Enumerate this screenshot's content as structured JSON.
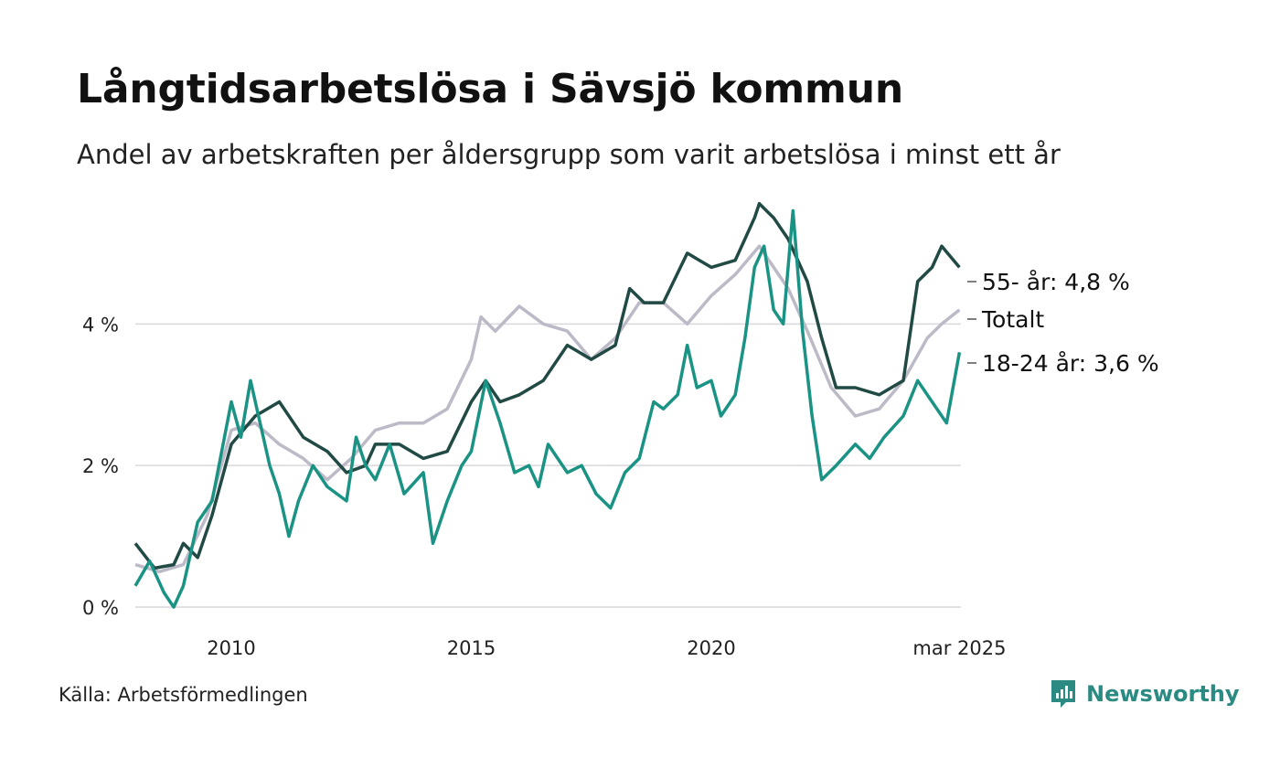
{
  "header": {
    "title": "Långtidsarbetslösa i Sävsjö kommun",
    "subtitle": "Andel av arbetskraften per åldersgrupp som varit arbetslösa i minst ett år"
  },
  "footer": {
    "source": "Källa: Arbetsförmedlingen",
    "brand": "Newsworthy"
  },
  "chart_data": {
    "type": "line",
    "x_range": [
      2008.0,
      2025.2
    ],
    "ylim": [
      0,
      5.8
    ],
    "y_ticks": [
      {
        "value": 0,
        "label": "0 %"
      },
      {
        "value": 2,
        "label": "2 %"
      },
      {
        "value": 4,
        "label": "4 %"
      }
    ],
    "x_ticks": [
      {
        "value": 2010,
        "label": "2010"
      },
      {
        "value": 2015,
        "label": "2015"
      },
      {
        "value": 2020,
        "label": "2020"
      },
      {
        "value": 2025.17,
        "label": "mar 2025"
      }
    ],
    "grid": true,
    "legend": "end-labels",
    "series": [
      {
        "name": "Totalt",
        "label": "Totalt",
        "color": "#bdbac8",
        "points": [
          [
            2008.0,
            0.6
          ],
          [
            2008.5,
            0.5
          ],
          [
            2009.0,
            0.6
          ],
          [
            2009.5,
            1.3
          ],
          [
            2010.0,
            2.5
          ],
          [
            2010.5,
            2.6
          ],
          [
            2011.0,
            2.3
          ],
          [
            2011.5,
            2.1
          ],
          [
            2012.0,
            1.8
          ],
          [
            2012.5,
            2.1
          ],
          [
            2013.0,
            2.5
          ],
          [
            2013.5,
            2.6
          ],
          [
            2014.0,
            2.6
          ],
          [
            2014.5,
            2.8
          ],
          [
            2015.0,
            3.5
          ],
          [
            2015.2,
            4.1
          ],
          [
            2015.5,
            3.9
          ],
          [
            2016.0,
            4.25
          ],
          [
            2016.5,
            4.0
          ],
          [
            2017.0,
            3.9
          ],
          [
            2017.5,
            3.5
          ],
          [
            2018.0,
            3.8
          ],
          [
            2018.5,
            4.3
          ],
          [
            2019.0,
            4.3
          ],
          [
            2019.5,
            4.0
          ],
          [
            2020.0,
            4.4
          ],
          [
            2020.5,
            4.7
          ],
          [
            2021.0,
            5.1
          ],
          [
            2021.3,
            4.8
          ],
          [
            2021.6,
            4.5
          ],
          [
            2022.0,
            3.9
          ],
          [
            2022.5,
            3.1
          ],
          [
            2023.0,
            2.7
          ],
          [
            2023.5,
            2.8
          ],
          [
            2024.0,
            3.2
          ],
          [
            2024.5,
            3.8
          ],
          [
            2024.8,
            4.0
          ],
          [
            2025.17,
            4.2
          ]
        ]
      },
      {
        "name": "55- år",
        "label": "55- år: 4,8 %",
        "color": "#214a45",
        "points": [
          [
            2008.0,
            0.9
          ],
          [
            2008.4,
            0.55
          ],
          [
            2008.8,
            0.6
          ],
          [
            2009.0,
            0.9
          ],
          [
            2009.3,
            0.7
          ],
          [
            2009.6,
            1.3
          ],
          [
            2010.0,
            2.3
          ],
          [
            2010.5,
            2.7
          ],
          [
            2011.0,
            2.9
          ],
          [
            2011.5,
            2.4
          ],
          [
            2012.0,
            2.2
          ],
          [
            2012.4,
            1.9
          ],
          [
            2012.8,
            2.0
          ],
          [
            2013.0,
            2.3
          ],
          [
            2013.5,
            2.3
          ],
          [
            2014.0,
            2.1
          ],
          [
            2014.5,
            2.2
          ],
          [
            2015.0,
            2.9
          ],
          [
            2015.3,
            3.2
          ],
          [
            2015.6,
            2.9
          ],
          [
            2016.0,
            3.0
          ],
          [
            2016.5,
            3.2
          ],
          [
            2017.0,
            3.7
          ],
          [
            2017.5,
            3.5
          ],
          [
            2018.0,
            3.7
          ],
          [
            2018.3,
            4.5
          ],
          [
            2018.6,
            4.3
          ],
          [
            2019.0,
            4.3
          ],
          [
            2019.5,
            5.0
          ],
          [
            2020.0,
            4.8
          ],
          [
            2020.5,
            4.9
          ],
          [
            2020.9,
            5.5
          ],
          [
            2021.0,
            5.7
          ],
          [
            2021.3,
            5.5
          ],
          [
            2021.6,
            5.2
          ],
          [
            2022.0,
            4.6
          ],
          [
            2022.3,
            3.8
          ],
          [
            2022.6,
            3.1
          ],
          [
            2023.0,
            3.1
          ],
          [
            2023.5,
            3.0
          ],
          [
            2024.0,
            3.2
          ],
          [
            2024.3,
            4.6
          ],
          [
            2024.6,
            4.8
          ],
          [
            2024.8,
            5.1
          ],
          [
            2025.17,
            4.8
          ]
        ]
      },
      {
        "name": "18-24 år",
        "label": "18-24 år: 3,6 %",
        "color": "#1a9384",
        "points": [
          [
            2008.0,
            0.3
          ],
          [
            2008.3,
            0.65
          ],
          [
            2008.6,
            0.2
          ],
          [
            2008.8,
            0.0
          ],
          [
            2009.0,
            0.3
          ],
          [
            2009.3,
            1.2
          ],
          [
            2009.6,
            1.5
          ],
          [
            2009.8,
            2.2
          ],
          [
            2010.0,
            2.9
          ],
          [
            2010.2,
            2.4
          ],
          [
            2010.4,
            3.2
          ],
          [
            2010.6,
            2.6
          ],
          [
            2010.8,
            2.0
          ],
          [
            2011.0,
            1.6
          ],
          [
            2011.2,
            1.0
          ],
          [
            2011.4,
            1.5
          ],
          [
            2011.7,
            2.0
          ],
          [
            2012.0,
            1.7
          ],
          [
            2012.4,
            1.5
          ],
          [
            2012.6,
            2.4
          ],
          [
            2012.8,
            2.0
          ],
          [
            2013.0,
            1.8
          ],
          [
            2013.3,
            2.3
          ],
          [
            2013.6,
            1.6
          ],
          [
            2014.0,
            1.9
          ],
          [
            2014.2,
            0.9
          ],
          [
            2014.5,
            1.5
          ],
          [
            2014.8,
            2.0
          ],
          [
            2015.0,
            2.2
          ],
          [
            2015.3,
            3.2
          ],
          [
            2015.6,
            2.6
          ],
          [
            2015.9,
            1.9
          ],
          [
            2016.2,
            2.0
          ],
          [
            2016.4,
            1.7
          ],
          [
            2016.6,
            2.3
          ],
          [
            2017.0,
            1.9
          ],
          [
            2017.3,
            2.0
          ],
          [
            2017.6,
            1.6
          ],
          [
            2017.9,
            1.4
          ],
          [
            2018.2,
            1.9
          ],
          [
            2018.5,
            2.1
          ],
          [
            2018.8,
            2.9
          ],
          [
            2019.0,
            2.8
          ],
          [
            2019.3,
            3.0
          ],
          [
            2019.5,
            3.7
          ],
          [
            2019.7,
            3.1
          ],
          [
            2020.0,
            3.2
          ],
          [
            2020.2,
            2.7
          ],
          [
            2020.5,
            3.0
          ],
          [
            2020.7,
            3.8
          ],
          [
            2020.9,
            4.8
          ],
          [
            2021.1,
            5.1
          ],
          [
            2021.3,
            4.2
          ],
          [
            2021.5,
            4.0
          ],
          [
            2021.7,
            5.6
          ],
          [
            2021.9,
            3.9
          ],
          [
            2022.1,
            2.7
          ],
          [
            2022.3,
            1.8
          ],
          [
            2022.6,
            2.0
          ],
          [
            2023.0,
            2.3
          ],
          [
            2023.3,
            2.1
          ],
          [
            2023.6,
            2.4
          ],
          [
            2024.0,
            2.7
          ],
          [
            2024.3,
            3.2
          ],
          [
            2024.6,
            2.9
          ],
          [
            2024.9,
            2.6
          ],
          [
            2025.17,
            3.6
          ]
        ]
      }
    ]
  }
}
